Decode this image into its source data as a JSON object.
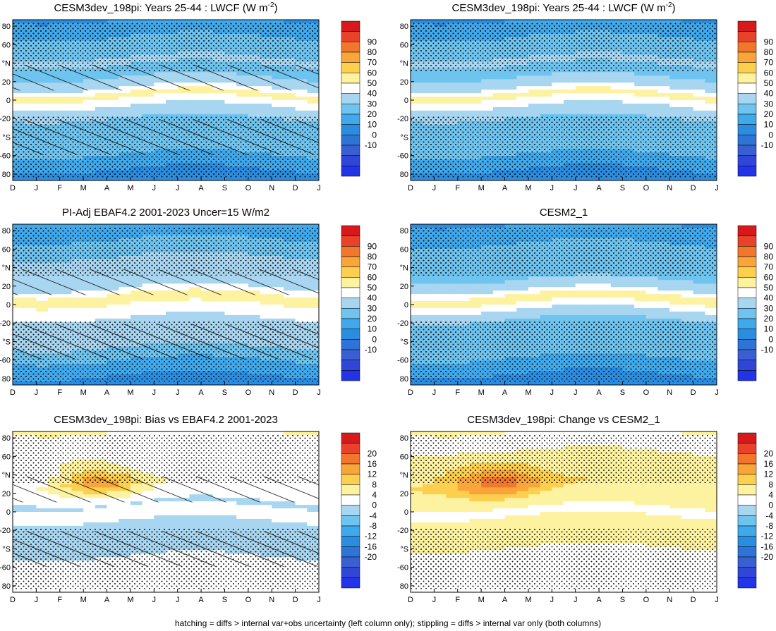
{
  "footer_note": "hatching = diffs > internal var+obs uncertainty (left column only); stippling = diffs > internal var only (both columns)",
  "chart_data": [
    {
      "type": "heatmap",
      "title": "CESM3dev_198pi: Years 25-44 : LWCF (W m",
      "title_sup": "-2",
      "title_tail": ")",
      "x_ticks": [
        "D",
        "J",
        "F",
        "M",
        "A",
        "M",
        "J",
        "J",
        "A",
        "S",
        "O",
        "N",
        "D",
        "J"
      ],
      "y_ticks": [
        "80",
        "60",
        "°N",
        "20",
        "0",
        "-20",
        "°S",
        "-60",
        "80"
      ],
      "ylim": [
        -90,
        90
      ],
      "colorbar_labels": [
        "90",
        "80",
        "70",
        "60",
        "50",
        "40",
        "30",
        "20",
        "10",
        "0",
        "-10"
      ],
      "colorbar_colors": [
        "#d7191c",
        "#e8432a",
        "#f2772c",
        "#f9a53a",
        "#fcd04e",
        "#fdf2a0",
        "#ffffff",
        "#a8d5f0",
        "#6ec4ef",
        "#3fa9ec",
        "#2b8de0",
        "#2e73d6",
        "#3a5fd0",
        "#3046d6",
        "#2233e8"
      ],
      "features": [
        "yellow ITCZ band near 5N",
        "hatching",
        "stippling"
      ],
      "zonal_profile": [
        [
          -90,
          -5
        ],
        [
          -70,
          3
        ],
        [
          -55,
          14
        ],
        [
          -40,
          20
        ],
        [
          -25,
          17
        ],
        [
          -10,
          26
        ],
        [
          0,
          38
        ],
        [
          6,
          44
        ],
        [
          14,
          30
        ],
        [
          28,
          18
        ],
        [
          45,
          21
        ],
        [
          60,
          15
        ],
        [
          75,
          8
        ],
        [
          90,
          0
        ]
      ]
    },
    {
      "type": "heatmap",
      "title": "CESM3dev_198pi: Years 25-44 : LWCF (W m",
      "title_sup": "-2",
      "title_tail": ")",
      "x_ticks": [
        "D",
        "J",
        "F",
        "M",
        "A",
        "M",
        "J",
        "J",
        "A",
        "S",
        "O",
        "N",
        "D",
        "J"
      ],
      "y_ticks": [
        "80",
        "60",
        "°N",
        "20",
        "0",
        "-20",
        "°S",
        "-60",
        "80"
      ],
      "ylim": [
        -90,
        90
      ],
      "colorbar_labels": [
        "90",
        "80",
        "70",
        "60",
        "50",
        "40",
        "30",
        "20",
        "10",
        "0",
        "-10"
      ],
      "colorbar_colors": [
        "#d7191c",
        "#e8432a",
        "#f2772c",
        "#f9a53a",
        "#fcd04e",
        "#fdf2a0",
        "#ffffff",
        "#a8d5f0",
        "#6ec4ef",
        "#3fa9ec",
        "#2b8de0",
        "#2e73d6",
        "#3a5fd0",
        "#3046d6",
        "#2233e8"
      ],
      "features": [
        "yellow ITCZ band near 5N",
        "stippling"
      ],
      "zonal_profile": [
        [
          -90,
          -5
        ],
        [
          -70,
          3
        ],
        [
          -55,
          14
        ],
        [
          -40,
          20
        ],
        [
          -25,
          17
        ],
        [
          -10,
          26
        ],
        [
          0,
          38
        ],
        [
          6,
          44
        ],
        [
          14,
          30
        ],
        [
          28,
          18
        ],
        [
          45,
          21
        ],
        [
          60,
          15
        ],
        [
          75,
          8
        ],
        [
          90,
          0
        ]
      ]
    },
    {
      "type": "heatmap",
      "title": "PI-Adj EBAF4.2 2001-2023 Uncer=15 W/m2",
      "x_ticks": [
        "D",
        "J",
        "F",
        "M",
        "A",
        "M",
        "J",
        "J",
        "A",
        "S",
        "O",
        "N",
        "D",
        "J"
      ],
      "y_ticks": [
        "80",
        "60",
        "°N",
        "20",
        "0",
        "-20",
        "°S",
        "-60",
        "80"
      ],
      "ylim": [
        -90,
        90
      ],
      "colorbar_labels": [
        "90",
        "80",
        "70",
        "60",
        "50",
        "40",
        "30",
        "20",
        "10",
        "0",
        "-10"
      ],
      "colorbar_colors": [
        "#d7191c",
        "#e8432a",
        "#f2772c",
        "#f9a53a",
        "#fcd04e",
        "#fdf2a0",
        "#ffffff",
        "#a8d5f0",
        "#6ec4ef",
        "#3fa9ec",
        "#2b8de0",
        "#2e73d6",
        "#3a5fd0",
        "#3046d6",
        "#2233e8"
      ],
      "features": [
        "yellow ITCZ band near 8N",
        "hatching",
        "stippling"
      ],
      "zonal_profile": [
        [
          -90,
          -5
        ],
        [
          -70,
          4
        ],
        [
          -55,
          16
        ],
        [
          -40,
          24
        ],
        [
          -25,
          21
        ],
        [
          -10,
          34
        ],
        [
          0,
          40
        ],
        [
          8,
          47
        ],
        [
          16,
          32
        ],
        [
          30,
          20
        ],
        [
          45,
          24
        ],
        [
          60,
          17
        ],
        [
          75,
          9
        ],
        [
          90,
          1
        ]
      ]
    },
    {
      "type": "heatmap",
      "title": "CESM2_1",
      "x_ticks": [
        "D",
        "J",
        "F",
        "M",
        "A",
        "M",
        "J",
        "J",
        "A",
        "S",
        "O",
        "N",
        "D",
        "J"
      ],
      "y_ticks": [
        "80",
        "60",
        "°N",
        "20",
        "0",
        "-20",
        "°S",
        "-60",
        "80"
      ],
      "ylim": [
        -90,
        90
      ],
      "colorbar_labels": [
        "90",
        "80",
        "70",
        "60",
        "50",
        "40",
        "30",
        "20",
        "10",
        "0",
        "-10"
      ],
      "colorbar_colors": [
        "#d7191c",
        "#e8432a",
        "#f2772c",
        "#f9a53a",
        "#fcd04e",
        "#fdf2a0",
        "#ffffff",
        "#a8d5f0",
        "#6ec4ef",
        "#3fa9ec",
        "#2b8de0",
        "#2e73d6",
        "#3a5fd0",
        "#3046d6",
        "#2233e8"
      ],
      "features": [
        "yellow ITCZ band near 8N",
        "stippling"
      ],
      "zonal_profile": [
        [
          -90,
          -5
        ],
        [
          -70,
          3
        ],
        [
          -55,
          13
        ],
        [
          -40,
          18
        ],
        [
          -25,
          15
        ],
        [
          -10,
          24
        ],
        [
          0,
          38
        ],
        [
          8,
          45
        ],
        [
          16,
          30
        ],
        [
          30,
          18
        ],
        [
          45,
          19
        ],
        [
          60,
          14
        ],
        [
          75,
          7
        ],
        [
          90,
          0
        ]
      ]
    },
    {
      "type": "heatmap",
      "title": "CESM3dev_198pi: Bias vs EBAF4.2 2001-2023",
      "x_ticks": [
        "D",
        "J",
        "F",
        "M",
        "A",
        "M",
        "J",
        "J",
        "A",
        "S",
        "O",
        "N",
        "D",
        "J"
      ],
      "y_ticks": [
        "80",
        "60",
        "°N",
        "20",
        "0",
        "-20",
        "°S",
        "-60",
        "80"
      ],
      "ylim": [
        -90,
        90
      ],
      "colorbar_labels": [
        "20",
        "16",
        "12",
        "8",
        "4",
        "0",
        "-4",
        "-8",
        "-12",
        "-16",
        "-20"
      ],
      "colorbar_colors": [
        "#d7191c",
        "#e8432a",
        "#f2772c",
        "#f9a53a",
        "#fcd04e",
        "#fdf2a0",
        "#ffffff",
        "#a8d5f0",
        "#6ec4ef",
        "#3fa9ec",
        "#2b8de0",
        "#2e73d6",
        "#3a5fd0",
        "#3046d6",
        "#2233e8"
      ],
      "features": [
        "positive bias maximum near 35N in April",
        "hatching",
        "stippling"
      ],
      "zonal_profile": [
        [
          -90,
          -2
        ],
        [
          -70,
          -4
        ],
        [
          -55,
          -3
        ],
        [
          -40,
          -6
        ],
        [
          -25,
          -6
        ],
        [
          -10,
          -4
        ],
        [
          0,
          -1
        ],
        [
          8,
          -5
        ],
        [
          16,
          -3
        ],
        [
          30,
          -1
        ],
        [
          45,
          -4
        ],
        [
          60,
          -2
        ],
        [
          75,
          -1
        ],
        [
          90,
          0
        ]
      ]
    },
    {
      "type": "heatmap",
      "title": "CESM3dev_198pi: Change vs CESM2_1",
      "x_ticks": [
        "D",
        "J",
        "F",
        "M",
        "A",
        "M",
        "J",
        "J",
        "A",
        "S",
        "O",
        "N",
        "D",
        "J"
      ],
      "y_ticks": [
        "80",
        "60",
        "°N",
        "20",
        "0",
        "-20",
        "°S",
        "-60",
        "80"
      ],
      "ylim": [
        -90,
        90
      ],
      "colorbar_labels": [
        "20",
        "16",
        "12",
        "8",
        "4",
        "0",
        "-4",
        "-8",
        "-12",
        "-16",
        "-20"
      ],
      "colorbar_colors": [
        "#d7191c",
        "#e8432a",
        "#f2772c",
        "#f9a53a",
        "#fcd04e",
        "#fdf2a0",
        "#ffffff",
        "#a8d5f0",
        "#6ec4ef",
        "#3fa9ec",
        "#2b8de0",
        "#2e73d6",
        "#3a5fd0",
        "#3046d6",
        "#2233e8"
      ],
      "features": [
        "positive change maximum near 35N in April",
        "stippling"
      ],
      "zonal_profile": [
        [
          -90,
          -2
        ],
        [
          -70,
          -2
        ],
        [
          -55,
          -1
        ],
        [
          -40,
          0
        ],
        [
          -25,
          1
        ],
        [
          -10,
          2
        ],
        [
          0,
          -2
        ],
        [
          8,
          1
        ],
        [
          16,
          2
        ],
        [
          30,
          4
        ],
        [
          45,
          2
        ],
        [
          60,
          1
        ],
        [
          75,
          -1
        ],
        [
          90,
          0
        ]
      ]
    }
  ]
}
